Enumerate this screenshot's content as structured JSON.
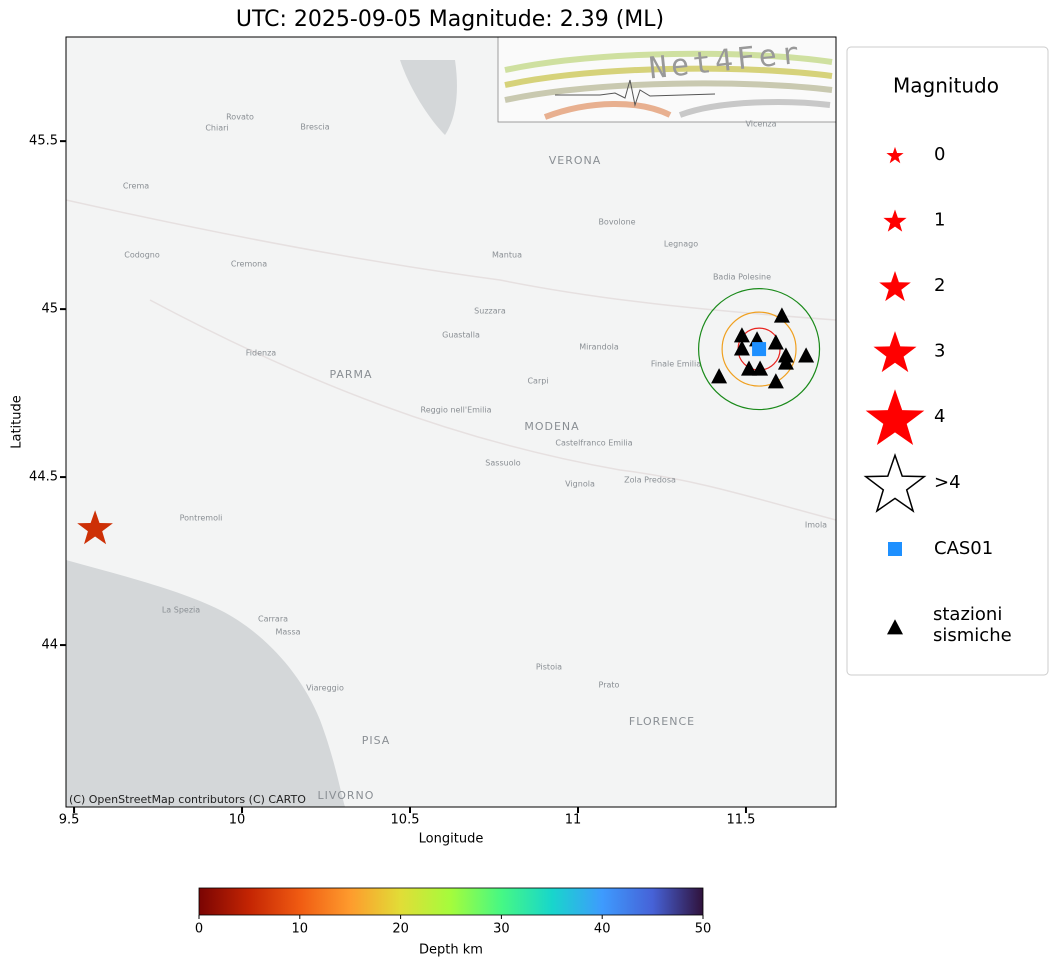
{
  "chart_data": {
    "type": "map",
    "title": "UTC: 2025-09-05 Magnitude: 2.39 (ML)",
    "xlabel": "Longitude",
    "ylabel": "Latitude",
    "xlim": [
      9.476,
      11.768
    ],
    "ylim": [
      43.518,
      45.81
    ],
    "xticks": [
      9.5,
      10.0,
      10.5,
      11.0,
      11.5
    ],
    "yticks": [
      44.0,
      44.5,
      45.0,
      45.5
    ],
    "attribution": "(C) OpenStreetMap contributors (C) CARTO",
    "logo": "Net4Fer",
    "places": [
      "VERONA",
      "PARMA",
      "MODENA",
      "FLORENCE",
      "PISA",
      "LIVORNO",
      "Reggio nell'Emilia",
      "Cremona",
      "Brescia",
      "Mantua",
      "La Spezia",
      "Carpi",
      "Mirandola",
      "Legnago",
      "Vicenza",
      "Prato",
      "Pistoia",
      "Fidenza",
      "Guastalla",
      "Suzzara",
      "Bovolone",
      "Sassuolo",
      "Pontremoli",
      "Viareggio",
      "Massa",
      "Carrara",
      "Crema",
      "Codogno",
      "Badia Polesine",
      "Finale Emilia",
      "Castelfranco Emilia",
      "Vignola",
      "Zola Predosa",
      "Imola",
      "Chiari",
      "Rovato"
    ],
    "event": {
      "lon": 9.5625,
      "lat": 44.351,
      "magnitude": 2.39,
      "depth": 6
    },
    "station_ref": {
      "name": "CAS01",
      "lon": 11.539,
      "lat": 44.881,
      "color": "#1e90ff"
    },
    "rings": [
      {
        "radius": 0.0625,
        "color": "#e8231e"
      },
      {
        "radius": 0.11,
        "color": "#f0a020"
      },
      {
        "radius": 0.18,
        "color": "#1a8a1a"
      }
    ],
    "stations": {
      "name": "stazioni sismiche",
      "color": "#000000",
      "lon": [
        11.607,
        11.488,
        11.533,
        11.589,
        11.488,
        11.619,
        11.679,
        11.619,
        11.509,
        11.542,
        11.42,
        11.589
      ],
      "lat": [
        44.979,
        44.92,
        44.908,
        44.899,
        44.881,
        44.86,
        44.86,
        44.839,
        44.821,
        44.821,
        44.798,
        44.783
      ]
    },
    "legend": {
      "title": "Magnitudo",
      "magnitudes": [
        0,
        1,
        2,
        3,
        4
      ],
      "open_label": ">4",
      "color": "#ff0000"
    },
    "colorbar": {
      "label": "Depth km",
      "lim": [
        0,
        50
      ],
      "ticks": [
        0,
        10,
        20,
        30,
        40,
        50
      ],
      "colors": [
        "#7a0403",
        "#c42503",
        "#f05b12",
        "#fe9b2d",
        "#e1dd37",
        "#a4fc3c",
        "#46f884",
        "#18d6cb",
        "#3e9bfe",
        "#4662d7",
        "#30123b"
      ]
    }
  }
}
